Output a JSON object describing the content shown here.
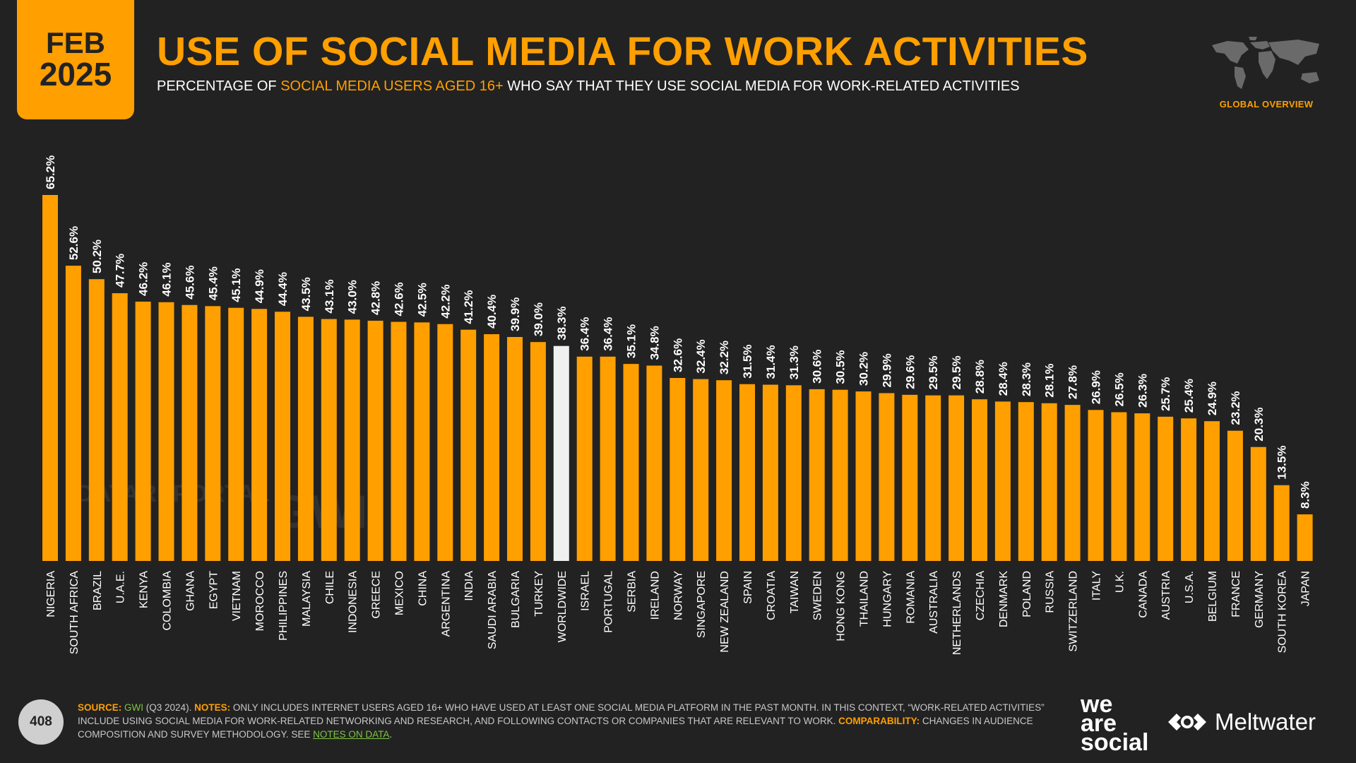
{
  "header": {
    "badge_month": "FEB",
    "badge_year": "2025",
    "title": "USE OF SOCIAL MEDIA FOR WORK ACTIVITIES",
    "subtitle_pre": "PERCENTAGE OF ",
    "subtitle_highlight": "SOCIAL MEDIA USERS AGED 16+",
    "subtitle_post": " WHO SAY THAT THEY USE SOCIAL MEDIA FOR WORK-RELATED ACTIVITIES",
    "global_label": "GLOBAL OVERVIEW",
    "map_icon": "world-map-icon"
  },
  "watermarks": {
    "datareportal": "DATAREPORTAL",
    "gwi": "GWI."
  },
  "chart_data": {
    "type": "bar",
    "title": "USE OF SOCIAL MEDIA FOR WORK ACTIVITIES",
    "ylim": [
      0,
      70
    ],
    "value_suffix": "%",
    "highlight_category": "WORLDWIDE",
    "colors": {
      "bar": "#ff9f00",
      "highlight": "#f0f0f0",
      "label": "#ffffff"
    },
    "categories": [
      "NIGERIA",
      "SOUTH AFRICA",
      "BRAZIL",
      "U.A.E.",
      "KENYA",
      "COLOMBIA",
      "GHANA",
      "EGYPT",
      "VIETNAM",
      "MOROCCO",
      "PHILIPPINES",
      "MALAYSIA",
      "CHILE",
      "INDONESIA",
      "GREECE",
      "MEXICO",
      "CHINA",
      "ARGENTINA",
      "INDIA",
      "SAUDI ARABIA",
      "BULGARIA",
      "TURKEY",
      "WORLDWIDE",
      "ISRAEL",
      "PORTUGAL",
      "SERBIA",
      "IRELAND",
      "NORWAY",
      "SINGAPORE",
      "NEW ZEALAND",
      "SPAIN",
      "CROATIA",
      "TAIWAN",
      "SWEDEN",
      "HONG KONG",
      "THAILAND",
      "HUNGARY",
      "ROMANIA",
      "AUSTRALIA",
      "NETHERLANDS",
      "CZECHIA",
      "DENMARK",
      "POLAND",
      "RUSSIA",
      "SWITZERLAND",
      "ITALY",
      "U.K.",
      "CANADA",
      "AUSTRIA",
      "U.S.A.",
      "BELGIUM",
      "FRANCE",
      "GERMANY",
      "SOUTH KOREA",
      "JAPAN"
    ],
    "values": [
      65.2,
      52.6,
      50.2,
      47.7,
      46.2,
      46.1,
      45.6,
      45.4,
      45.1,
      44.9,
      44.4,
      43.5,
      43.1,
      43.0,
      42.8,
      42.6,
      42.5,
      42.2,
      41.2,
      40.4,
      39.9,
      39.0,
      38.3,
      36.4,
      36.4,
      35.1,
      34.8,
      32.6,
      32.4,
      32.2,
      31.5,
      31.4,
      31.3,
      30.6,
      30.5,
      30.2,
      29.9,
      29.6,
      29.5,
      29.5,
      28.8,
      28.4,
      28.3,
      28.1,
      27.8,
      26.9,
      26.5,
      26.3,
      25.7,
      25.4,
      24.9,
      23.2,
      20.3,
      13.5,
      8.3
    ]
  },
  "footer": {
    "page_number": "408",
    "source_label": "SOURCE:",
    "source_gwi": "GWI",
    "source_period": " (Q3 2024). ",
    "notes_label": "NOTES:",
    "notes_text": " ONLY INCLUDES INTERNET USERS AGED 16+ WHO HAVE USED AT LEAST ONE SOCIAL MEDIA PLATFORM IN THE PAST MONTH. IN THIS CONTEXT, “WORK-RELATED ACTIVITIES” INCLUDE USING SOCIAL MEDIA FOR WORK-RELATED NETWORKING AND RESEARCH, AND FOLLOWING CONTACTS OR COMPANIES THAT ARE RELEVANT TO WORK. ",
    "comparability_label": "COMPARABILITY:",
    "comparability_text": " CHANGES IN AUDIENCE COMPOSITION AND SURVEY METHODOLOGY. SEE ",
    "notes_link": "NOTES ON DATA",
    "end_period": ".",
    "logo_we": "we",
    "logo_are": "are",
    "logo_social": "social",
    "logo_meltwater": "Meltwater"
  }
}
